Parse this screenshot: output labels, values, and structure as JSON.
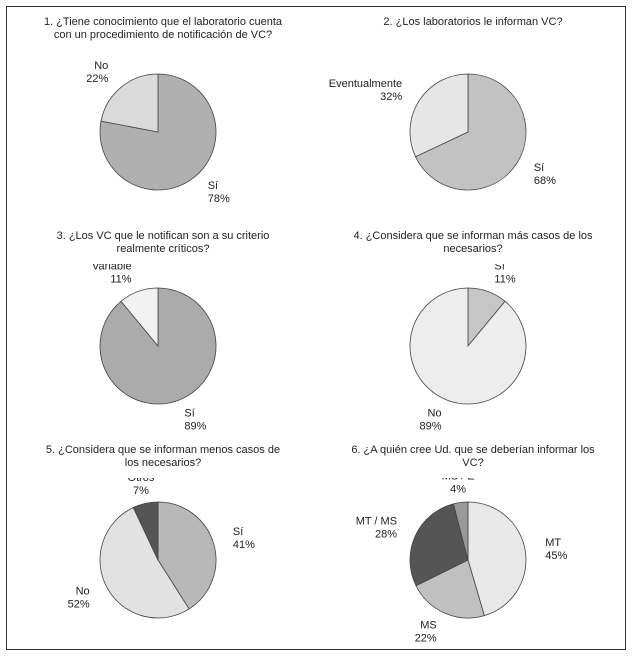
{
  "chart_data": [
    {
      "type": "pie",
      "title": "1. ¿Tiene conocimiento que el laboratorio cuenta con un procedimiento de notificación de VC?",
      "categories": [
        "Sí",
        "No"
      ],
      "values": [
        78,
        22
      ],
      "value_labels": [
        "78%",
        "22%"
      ],
      "colors": [
        "#b0b0b0",
        "#dadada"
      ]
    },
    {
      "type": "pie",
      "title": "2. ¿Los laboratorios le informan VC?",
      "categories": [
        "Sí",
        "Eventualmente"
      ],
      "values": [
        68,
        32
      ],
      "value_labels": [
        "68%",
        "32%"
      ],
      "colors": [
        "#c2c2c2",
        "#e6e6e6"
      ]
    },
    {
      "type": "pie",
      "title": "3. ¿Los VC que le notifican son a su criterio realmente críticos?",
      "categories": [
        "Sí",
        "Variable"
      ],
      "values": [
        89,
        11
      ],
      "value_labels": [
        "89%",
        "11%"
      ],
      "colors": [
        "#ababab",
        "#f2f2f2"
      ]
    },
    {
      "type": "pie",
      "title": "4. ¿Considera que se informan más casos de los necesarios?",
      "categories": [
        "Sí",
        "No"
      ],
      "values": [
        11,
        89
      ],
      "value_labels": [
        "11%",
        "89%"
      ],
      "colors": [
        "#c6c6c6",
        "#ededed"
      ]
    },
    {
      "type": "pie",
      "title": "5. ¿Considera que se informan menos casos de los necesarios?",
      "categories": [
        "Sí",
        "No",
        "Otros"
      ],
      "values": [
        41,
        52,
        7
      ],
      "value_labels": [
        "41%",
        "52%",
        "7%"
      ],
      "colors": [
        "#b8b8b8",
        "#e2e2e2",
        "#555555"
      ]
    },
    {
      "type": "pie",
      "title": "6. ¿A quién cree Ud. que se deberían informar los VC?",
      "categories": [
        "MT",
        "MS",
        "MT / MS",
        "MS / E"
      ],
      "values": [
        45,
        22,
        28,
        4
      ],
      "value_labels": [
        "45%",
        "22%",
        "28%",
        "4%"
      ],
      "colors": [
        "#e8e8e8",
        "#c0c0c0",
        "#555555",
        "#999999"
      ]
    }
  ]
}
